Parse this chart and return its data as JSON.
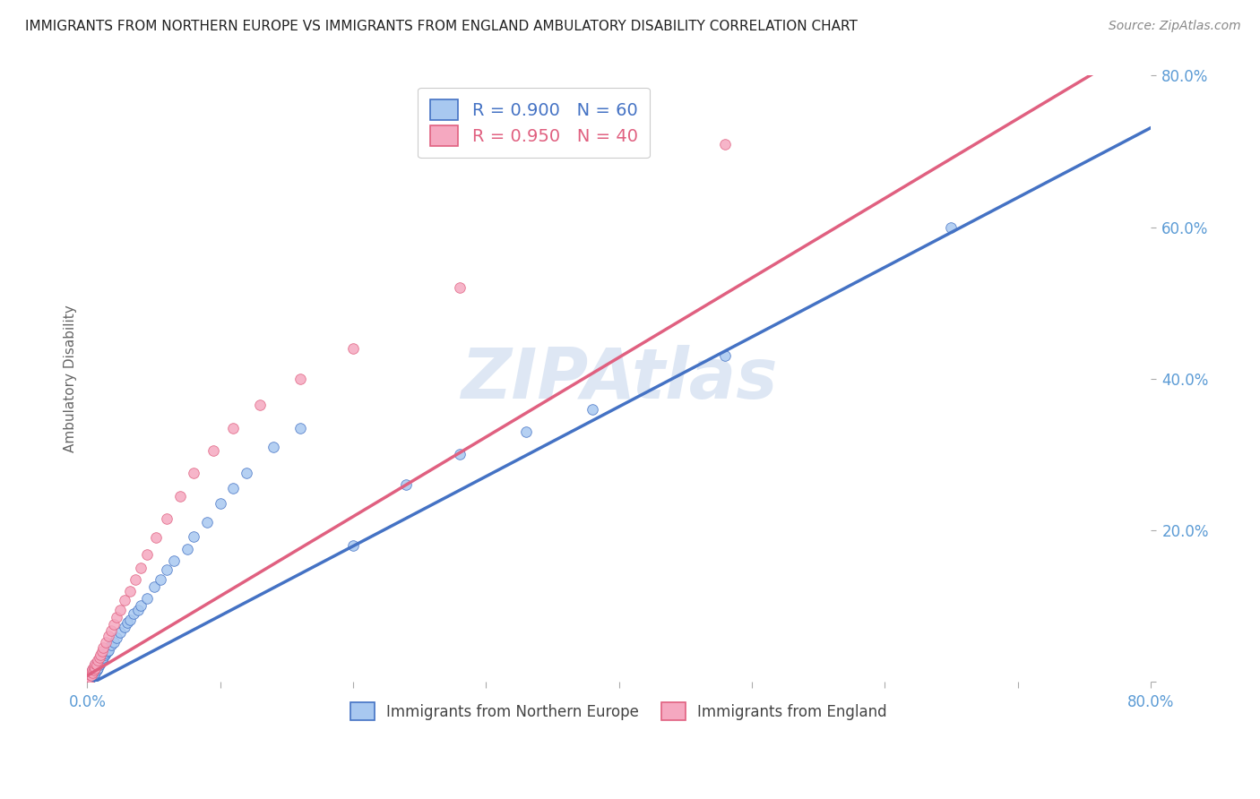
{
  "title": "IMMIGRANTS FROM NORTHERN EUROPE VS IMMIGRANTS FROM ENGLAND AMBULATORY DISABILITY CORRELATION CHART",
  "source": "Source: ZipAtlas.com",
  "ylabel": "Ambulatory Disability",
  "xlim": [
    0.0,
    0.8
  ],
  "ylim": [
    0.0,
    0.8
  ],
  "xticks": [
    0.0,
    0.1,
    0.2,
    0.3,
    0.4,
    0.5,
    0.6,
    0.7,
    0.8
  ],
  "xticklabels": [
    "0.0%",
    "",
    "",
    "",
    "",
    "",
    "",
    "",
    "80.0%"
  ],
  "yticks_right": [
    0.0,
    0.2,
    0.4,
    0.6,
    0.8
  ],
  "yticklabels_right": [
    "",
    "20.0%",
    "40.0%",
    "60.0%",
    "80.0%"
  ],
  "series1_color": "#A8C8F0",
  "series2_color": "#F5A8C0",
  "line1_color": "#4472C4",
  "line2_color": "#E06080",
  "R1": 0.9,
  "N1": 60,
  "R2": 0.95,
  "N2": 40,
  "legend1_label": "Immigrants from Northern Europe",
  "legend2_label": "Immigrants from England",
  "watermark": "ZIPAtlas",
  "background_color": "#ffffff",
  "grid_color": "#cccccc",
  "title_color": "#222222",
  "axis_color": "#5B9BD5",
  "line1_slope": 0.92,
  "line1_intercept": -0.005,
  "line2_slope": 1.05,
  "line2_intercept": 0.008,
  "series1_x": [
    0.001,
    0.001,
    0.002,
    0.002,
    0.002,
    0.003,
    0.003,
    0.003,
    0.004,
    0.004,
    0.004,
    0.005,
    0.005,
    0.005,
    0.006,
    0.006,
    0.006,
    0.007,
    0.007,
    0.008,
    0.008,
    0.009,
    0.01,
    0.01,
    0.011,
    0.012,
    0.013,
    0.014,
    0.015,
    0.016,
    0.018,
    0.02,
    0.022,
    0.025,
    0.028,
    0.03,
    0.032,
    0.035,
    0.038,
    0.04,
    0.045,
    0.05,
    0.055,
    0.06,
    0.065,
    0.075,
    0.08,
    0.09,
    0.1,
    0.11,
    0.12,
    0.14,
    0.16,
    0.2,
    0.24,
    0.28,
    0.33,
    0.38,
    0.48,
    0.65
  ],
  "series1_y": [
    0.003,
    0.005,
    0.004,
    0.007,
    0.01,
    0.006,
    0.009,
    0.013,
    0.008,
    0.012,
    0.016,
    0.01,
    0.014,
    0.018,
    0.012,
    0.016,
    0.022,
    0.015,
    0.02,
    0.018,
    0.024,
    0.022,
    0.025,
    0.03,
    0.028,
    0.032,
    0.035,
    0.038,
    0.04,
    0.042,
    0.048,
    0.052,
    0.058,
    0.065,
    0.072,
    0.078,
    0.082,
    0.09,
    0.095,
    0.1,
    0.11,
    0.125,
    0.135,
    0.148,
    0.16,
    0.175,
    0.192,
    0.21,
    0.235,
    0.255,
    0.275,
    0.31,
    0.335,
    0.18,
    0.26,
    0.3,
    0.33,
    0.36,
    0.43,
    0.6
  ],
  "series2_x": [
    0.001,
    0.001,
    0.002,
    0.002,
    0.003,
    0.003,
    0.004,
    0.004,
    0.005,
    0.005,
    0.006,
    0.006,
    0.007,
    0.008,
    0.009,
    0.01,
    0.011,
    0.012,
    0.014,
    0.016,
    0.018,
    0.02,
    0.022,
    0.025,
    0.028,
    0.032,
    0.036,
    0.04,
    0.045,
    0.052,
    0.06,
    0.07,
    0.08,
    0.095,
    0.11,
    0.13,
    0.16,
    0.2,
    0.28,
    0.48
  ],
  "series2_y": [
    0.004,
    0.007,
    0.006,
    0.01,
    0.008,
    0.013,
    0.012,
    0.017,
    0.015,
    0.02,
    0.018,
    0.024,
    0.022,
    0.028,
    0.032,
    0.036,
    0.04,
    0.045,
    0.052,
    0.06,
    0.068,
    0.076,
    0.085,
    0.095,
    0.108,
    0.12,
    0.135,
    0.15,
    0.168,
    0.19,
    0.215,
    0.245,
    0.275,
    0.305,
    0.335,
    0.365,
    0.4,
    0.44,
    0.52,
    0.71
  ]
}
